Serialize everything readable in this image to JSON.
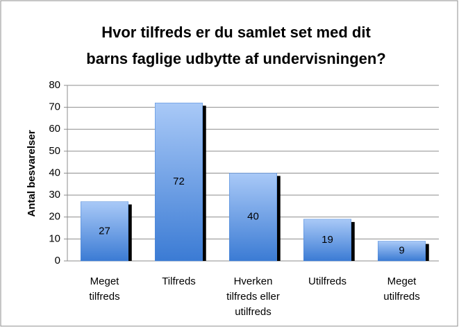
{
  "chart_data": {
    "type": "bar",
    "title": [
      "Hvor tilfreds er du samlet set med dit",
      "barns faglige udbytte af undervisningen?"
    ],
    "ylabel": "Antal besvarelser",
    "categories": [
      [
        "Meget",
        "tilfreds"
      ],
      [
        "Tilfreds"
      ],
      [
        "Hverken",
        "tilfreds eller",
        "utilfreds"
      ],
      [
        "Utilfreds"
      ],
      [
        "Meget",
        "utilfreds"
      ]
    ],
    "values": [
      27,
      72,
      40,
      19,
      9
    ],
    "color": "#4a86d8",
    "ylim": [
      0,
      80
    ],
    "yticks": [
      0,
      10,
      20,
      30,
      40,
      50,
      60,
      70,
      80
    ],
    "grid": true
  }
}
